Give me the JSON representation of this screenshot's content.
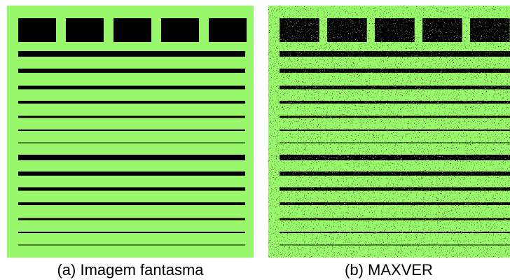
{
  "figure": {
    "panels": [
      {
        "caption": "(a) Imagem fantasma"
      },
      {
        "caption": "(b) MAXVER"
      }
    ]
  }
}
